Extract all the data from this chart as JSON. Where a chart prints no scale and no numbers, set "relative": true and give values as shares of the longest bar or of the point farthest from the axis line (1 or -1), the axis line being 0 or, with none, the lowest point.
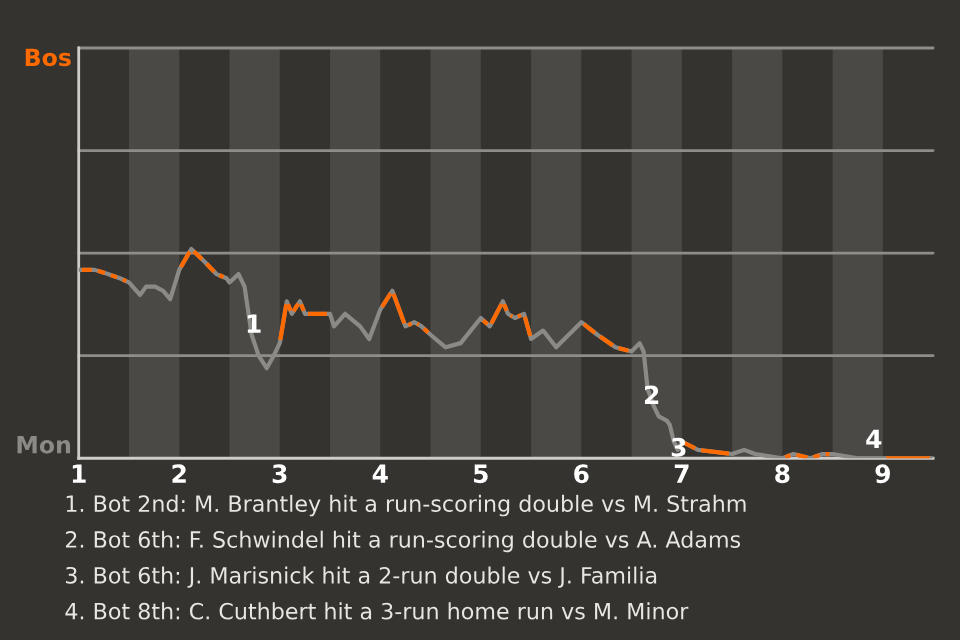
{
  "chart_data": {
    "type": "line",
    "relative": true,
    "x": [
      1,
      1.16,
      1.29,
      1.41,
      1.5,
      1.61,
      1.67,
      1.76,
      1.84,
      1.91,
      2,
      2.12,
      2.25,
      2.37,
      2.47,
      2.5,
      2.59,
      2.65,
      2.72,
      2.79,
      2.87,
      2.94,
      3,
      3.07,
      3.12,
      3.2,
      3.25,
      3.5,
      3.54,
      3.65,
      3.8,
      3.89,
      4,
      4.12,
      4.25,
      4.34,
      4.41,
      4.5,
      4.65,
      4.8,
      5,
      5.09,
      5.22,
      5.27,
      5.34,
      5.43,
      5.5,
      5.62,
      5.75,
      6,
      6.16,
      6.34,
      6.5,
      6.58,
      6.62,
      6.66,
      6.72,
      6.77,
      6.85,
      6.88,
      6.92,
      6.96,
      7,
      7.16,
      7.5,
      7.62,
      7.73,
      8,
      8.11,
      8.28,
      8.4,
      8.5,
      8.75,
      9,
      9.5
    ],
    "series": [
      {
        "color": "#8c8a87",
        "values": [
          0.9,
          0.9,
          0.88,
          0.86,
          0.84,
          0.78,
          0.82,
          0.82,
          0.8,
          0.76,
          0.9,
          1,
          0.94,
          0.88,
          0.86,
          0.84,
          0.88,
          0.82,
          0.59,
          0.49,
          0.43,
          0.49,
          0.55,
          0.75,
          0.69,
          0.75,
          0.69,
          0.69,
          0.63,
          0.69,
          0.63,
          0.57,
          0.71,
          0.8,
          0.63,
          0.65,
          0.63,
          0.59,
          0.53,
          0.55,
          0.67,
          0.63,
          0.75,
          0.69,
          0.67,
          0.69,
          0.57,
          0.61,
          0.53,
          0.65,
          0.59,
          0.53,
          0.51,
          0.55,
          0.51,
          0.33,
          0.25,
          0.2,
          0.18,
          0.16,
          0.08,
          0.04,
          0.08,
          0.04,
          0.02,
          0.04,
          0.02,
          0,
          0.02,
          0,
          0.02,
          0.02,
          0,
          0,
          0
        ],
        "colors": [
          "#ff6a00",
          "#ff6a00",
          "#ff6a00",
          "#ff6a00",
          "#8c8a87",
          "#8c8a87",
          "#8c8a87",
          "#8c8a87",
          "#8c8a87",
          "#8c8a87",
          "#ff6a00",
          "#ff6a00",
          "#ff6a00",
          "#ff6a00",
          "#ff6a00",
          "#8c8a87",
          "#8c8a87",
          "#8c8a87",
          "#8c8a87",
          "#8c8a87",
          "#8c8a87",
          "#8c8a87",
          "#ff6a00",
          "#ff6a00",
          "#ff6a00",
          "#ff6a00",
          "#ff6a00",
          "#8c8a87",
          "#8c8a87",
          "#8c8a87",
          "#8c8a87",
          "#8c8a87",
          "#ff6a00",
          "#ff6a00",
          "#ff6a00",
          "#ff6a00",
          "#ff6a00",
          "#8c8a87",
          "#8c8a87",
          "#8c8a87",
          "#ff6a00",
          "#ff6a00",
          "#ff6a00",
          "#ff6a00",
          "#ff6a00",
          "#ff6a00",
          "#8c8a87",
          "#8c8a87",
          "#8c8a87",
          "#ff6a00",
          "#ff6a00",
          "#ff6a00",
          "#8c8a87",
          "#8c8a87",
          "#8c8a87",
          "#8c8a87",
          "#8c8a87",
          "#8c8a87",
          "#8c8a87",
          "#8c8a87",
          "#8c8a87",
          "#8c8a87",
          "#ff6a00",
          "#ff6a00",
          "#8c8a87",
          "#8c8a87",
          "#8c8a87",
          "#ff6a00",
          "#ff6a00",
          "#ff6a00",
          "#ff6a00",
          "#8c8a87",
          "#8c8a87",
          "#ff6a00",
          "#ff6a00"
        ]
      }
    ],
    "xlim": [
      1,
      9.5
    ],
    "xticks": [
      1,
      2,
      3,
      4,
      5,
      6,
      7,
      8,
      9
    ],
    "ref_lines": [
      {
        "axis": "y",
        "value": 0.49,
        "color": "#8f8d8a"
      },
      {
        "axis": "y",
        "value": 0.98,
        "color": "#8f8d8a"
      },
      {
        "axis": "y",
        "value": 1.47,
        "color": "#8f8d8a"
      },
      {
        "axis": "y",
        "value": 1.96,
        "color": "#8f8d8a"
      }
    ],
    "bands": [
      {
        "axis": "x",
        "from": 1.5,
        "to": 2,
        "color": "#4b4946"
      },
      {
        "axis": "x",
        "from": 2.5,
        "to": 3,
        "color": "#4b4946"
      },
      {
        "axis": "x",
        "from": 3.5,
        "to": 4,
        "color": "#4b4946"
      },
      {
        "axis": "x",
        "from": 4.5,
        "to": 5,
        "color": "#4b4946"
      },
      {
        "axis": "x",
        "from": 5.5,
        "to": 6,
        "color": "#4b4946"
      },
      {
        "axis": "x",
        "from": 6.5,
        "to": 7,
        "color": "#4b4946"
      },
      {
        "axis": "x",
        "from": 7.5,
        "to": 8,
        "color": "#4b4946"
      },
      {
        "axis": "x",
        "from": 8.5,
        "to": 9,
        "color": "#4b4946"
      }
    ],
    "annotations": [
      "Bos",
      "Mon",
      {
        "text": "1",
        "x": 2.74,
        "y": 0.69
      },
      {
        "text": "2",
        "x": 6.7,
        "y": 0.35
      },
      {
        "text": "3",
        "x": 6.97,
        "y": 0.1
      },
      {
        "text": "4",
        "x": 8.91,
        "y": 0.14
      },
      "1. Bot 2nd: M. Brantley hit a run-scoring double vs M. Strahm",
      "2. Bot 6th: F. Schwindel hit a run-scoring double vs A. Adams",
      "3. Bot 6th: J. Marisnick hit a 2-run double vs J. Familia",
      "4. Bot 8th: C. Cuthbert hit a 3-run home run vs M. Minor"
    ]
  }
}
